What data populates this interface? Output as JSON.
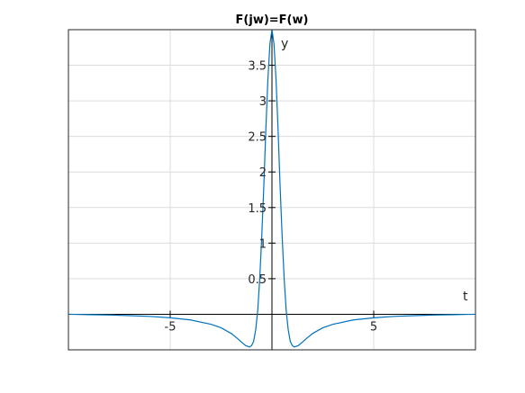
{
  "chart_data": {
    "type": "line",
    "title": "F(jw)=F(w)",
    "xlabel": "t",
    "ylabel": "y",
    "xlim": [
      -10,
      10
    ],
    "ylim": [
      -0.5,
      4.0
    ],
    "xticks": [
      -5,
      5
    ],
    "xtick_labels": [
      "-5",
      "5"
    ],
    "yticks": [
      0.5,
      1,
      1.5,
      2,
      2.5,
      3,
      3.5
    ],
    "ytick_labels": [
      "0.5",
      "1",
      "1.5",
      "2",
      "2.5",
      "3",
      "3.5"
    ],
    "grid": true,
    "color": "#0072bd",
    "series": [
      {
        "x": [
          -10,
          -9,
          -8,
          -7,
          -6,
          -5,
          -4,
          -3,
          -2.5,
          -2,
          -1.7,
          -1.5,
          -1.3,
          -1.1,
          -1,
          -0.9,
          -0.8,
          -0.7,
          -0.6,
          -0.5,
          -0.4,
          -0.3,
          -0.2,
          -0.1,
          0,
          0.1,
          0.2,
          0.3,
          0.4,
          0.5,
          0.6,
          0.7,
          0.8,
          0.9,
          1,
          1.1,
          1.3,
          1.5,
          1.7,
          2,
          2.5,
          3,
          4,
          5,
          6,
          7,
          8,
          9,
          10
        ],
        "y": [
          0,
          -0.005,
          -0.01,
          -0.02,
          -0.03,
          -0.05,
          -0.08,
          -0.14,
          -0.19,
          -0.27,
          -0.34,
          -0.39,
          -0.44,
          -0.46,
          -0.44,
          -0.38,
          -0.22,
          0.05,
          0.5,
          1.1,
          1.8,
          2.6,
          3.3,
          3.8,
          4.0,
          3.8,
          3.3,
          2.6,
          1.8,
          1.1,
          0.5,
          0.05,
          -0.22,
          -0.38,
          -0.44,
          -0.46,
          -0.44,
          -0.39,
          -0.34,
          -0.27,
          -0.19,
          -0.14,
          -0.08,
          -0.05,
          -0.03,
          -0.02,
          -0.01,
          -0.005,
          0
        ]
      }
    ]
  }
}
